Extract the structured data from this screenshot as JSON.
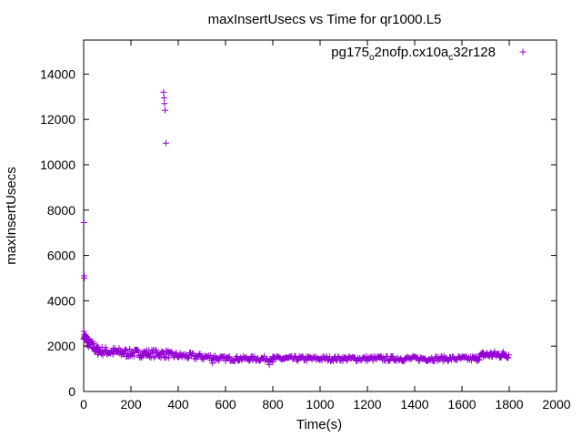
{
  "chart_data": {
    "type": "scatter",
    "title": "maxInsertUsecs vs Time for qr1000.L5",
    "xlabel": "Time(s)",
    "ylabel": "maxInsertUsecs",
    "xlim": [
      0,
      2000
    ],
    "ylim": [
      0,
      15500
    ],
    "xticks": [
      0,
      200,
      400,
      600,
      800,
      1000,
      1200,
      1400,
      1600,
      1800,
      2000
    ],
    "yticks": [
      0,
      2000,
      4000,
      6000,
      8000,
      10000,
      12000,
      14000
    ],
    "grid": false,
    "legend_position": "top-right",
    "marker": "plus",
    "series": [
      {
        "name_parts": [
          "pg175",
          "o",
          "2nofp.cx10a",
          "c",
          "32r128"
        ],
        "color": "#9400d3",
        "outliers": [
          [
            1,
            7450
          ],
          [
            2,
            5100
          ],
          [
            3,
            5000
          ],
          [
            338,
            13200
          ],
          [
            340,
            12950
          ],
          [
            342,
            12700
          ],
          [
            344,
            12400
          ],
          [
            348,
            10950
          ],
          [
            545,
            1250
          ],
          [
            785,
            1180
          ],
          [
            800,
            1300
          ]
        ],
        "segments": [
          {
            "x": [
              0,
              20
            ],
            "y": [
              2500,
              2150
            ],
            "spread": 200,
            "step": 1
          },
          {
            "x": [
              20,
              60
            ],
            "y": [
              2150,
              1800
            ],
            "spread": 220,
            "step": 2
          },
          {
            "x": [
              60,
              180
            ],
            "y": [
              1800,
              1700
            ],
            "spread": 200,
            "step": 3
          },
          {
            "x": [
              180,
              360
            ],
            "y": [
              1700,
              1650
            ],
            "spread": 180,
            "step": 3
          },
          {
            "x": [
              360,
              560
            ],
            "y": [
              1600,
              1500
            ],
            "spread": 150,
            "step": 4
          },
          {
            "x": [
              560,
              1660
            ],
            "y": [
              1450,
              1450
            ],
            "spread": 110,
            "step": 4
          },
          {
            "x": [
              1660,
              1690
            ],
            "y": [
              1450,
              1620
            ],
            "spread": 140,
            "step": 3
          },
          {
            "x": [
              1690,
              1800
            ],
            "y": [
              1620,
              1620
            ],
            "spread": 160,
            "step": 3
          }
        ]
      }
    ]
  }
}
